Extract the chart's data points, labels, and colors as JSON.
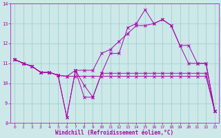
{
  "xlabel": "Windchill (Refroidissement éolien,°C)",
  "bg_color": "#cce8e8",
  "line_color": "#aa00aa",
  "xlim": [
    -0.5,
    23.5
  ],
  "ylim": [
    8,
    14
  ],
  "xticks": [
    0,
    1,
    2,
    3,
    4,
    5,
    6,
    7,
    8,
    9,
    10,
    11,
    12,
    13,
    14,
    15,
    16,
    17,
    18,
    19,
    20,
    21,
    22,
    23
  ],
  "yticks": [
    8,
    9,
    10,
    11,
    12,
    13,
    14
  ],
  "grid_color": "#99cccc",
  "series": [
    [
      11.2,
      11.0,
      10.85,
      10.55,
      10.55,
      10.4,
      10.35,
      10.35,
      10.35,
      10.35,
      10.35,
      10.35,
      10.35,
      10.35,
      10.35,
      10.35,
      10.35,
      10.35,
      10.35,
      10.35,
      10.35,
      10.35,
      10.35,
      8.6
    ],
    [
      11.2,
      11.0,
      10.85,
      10.55,
      10.55,
      10.4,
      8.3,
      10.65,
      9.9,
      9.3,
      10.5,
      10.5,
      10.5,
      10.5,
      10.5,
      10.5,
      10.5,
      10.5,
      10.5,
      10.5,
      10.5,
      10.5,
      10.5,
      8.6
    ],
    [
      11.2,
      11.0,
      10.85,
      10.55,
      10.55,
      10.4,
      8.3,
      10.65,
      9.3,
      9.3,
      10.5,
      11.5,
      11.5,
      12.8,
      13.0,
      13.7,
      13.0,
      13.2,
      12.9,
      11.9,
      11.0,
      11.0,
      11.0,
      8.6
    ],
    [
      11.2,
      11.0,
      10.85,
      10.55,
      10.55,
      10.4,
      10.35,
      10.65,
      10.65,
      10.65,
      11.5,
      11.7,
      12.1,
      12.5,
      12.9,
      12.9,
      13.0,
      13.2,
      12.9,
      11.9,
      11.9,
      11.0,
      11.0,
      8.6
    ]
  ]
}
